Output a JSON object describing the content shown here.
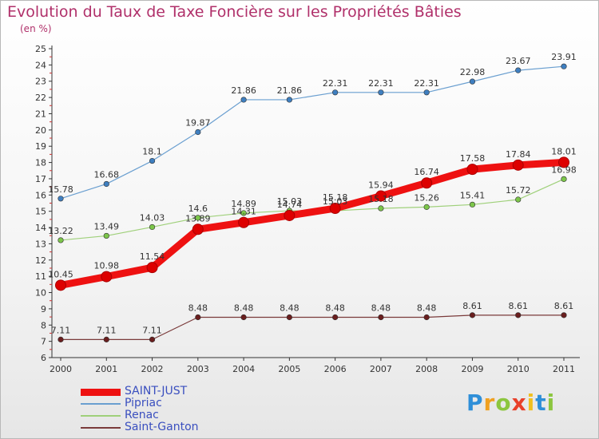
{
  "title": "Evolution du Taux de Taxe Foncière sur les Propriétés Bâties",
  "subtitle": "(en %)",
  "logo": {
    "text": "Proxiti",
    "letters": [
      {
        "ch": "P",
        "color": "#2f8fd8"
      },
      {
        "ch": "r",
        "color": "#f0a020"
      },
      {
        "ch": "o",
        "color": "#8cc63f"
      },
      {
        "ch": "x",
        "color": "#e8402a"
      },
      {
        "ch": "i",
        "color": "#f0c020"
      },
      {
        "ch": "t",
        "color": "#2f8fd8"
      },
      {
        "ch": "i",
        "color": "#8cc63f"
      }
    ]
  },
  "chart_data": {
    "type": "line",
    "x": [
      "2000",
      "2001",
      "2002",
      "2003",
      "2004",
      "2005",
      "2006",
      "2007",
      "2008",
      "2009",
      "2010",
      "2011"
    ],
    "ylim": [
      6,
      25
    ],
    "yticks": [
      6,
      7,
      8,
      9,
      10,
      11,
      12,
      13,
      14,
      15,
      16,
      17,
      18,
      19,
      20,
      21,
      22,
      23,
      24,
      25
    ],
    "grid": false,
    "legend_position": "bottom-left",
    "series": [
      {
        "name": "SAINT-JUST",
        "color": "#ee1111",
        "width": 9,
        "marker": "#dd0000",
        "values": [
          10.45,
          10.98,
          11.54,
          13.89,
          14.31,
          14.74,
          15.18,
          15.94,
          16.74,
          17.58,
          17.84,
          18.01
        ],
        "labels": [
          "10.45",
          "10.98",
          "11.54",
          "13.89",
          "14.31",
          "14.74",
          "15.18",
          "15.94",
          "16.74",
          "17.58",
          "17.84",
          "18.01"
        ]
      },
      {
        "name": "Pipriac",
        "color": "#6a9fd0",
        "width": 1.2,
        "marker": "#3f7fc0",
        "values": [
          15.78,
          16.68,
          18.1,
          19.87,
          21.86,
          21.86,
          22.31,
          22.31,
          22.31,
          22.98,
          23.67,
          23.91
        ],
        "labels": [
          "15.78",
          "16.68",
          "18.1",
          "19.87",
          "21.86",
          "21.86",
          "22.31",
          "22.31",
          "22.31",
          "22.98",
          "23.67",
          "23.91"
        ]
      },
      {
        "name": "Renac",
        "color": "#9fd07a",
        "width": 1.2,
        "marker": "#7cc64a",
        "values": [
          13.22,
          13.49,
          14.03,
          14.6,
          14.89,
          15.03,
          15.03,
          15.18,
          15.26,
          15.41,
          15.72,
          16.98
        ],
        "labels": [
          "13.22",
          "13.49",
          "14.03",
          "14.6",
          "14.89",
          "15.03",
          "15.03",
          "15.18",
          "15.26",
          "15.41",
          "15.72",
          "16.98"
        ]
      },
      {
        "name": "Saint-Ganton",
        "color": "#7a3a3a",
        "width": 1.2,
        "marker": "#6a1e1e",
        "values": [
          7.11,
          7.11,
          7.11,
          8.48,
          8.48,
          8.48,
          8.48,
          8.48,
          8.48,
          8.61,
          8.61,
          8.61
        ],
        "labels": [
          "7.11",
          "7.11",
          "7.11",
          "8.48",
          "8.48",
          "8.48",
          "8.48",
          "8.48",
          "8.48",
          "8.61",
          "8.61",
          "8.61"
        ]
      }
    ]
  }
}
